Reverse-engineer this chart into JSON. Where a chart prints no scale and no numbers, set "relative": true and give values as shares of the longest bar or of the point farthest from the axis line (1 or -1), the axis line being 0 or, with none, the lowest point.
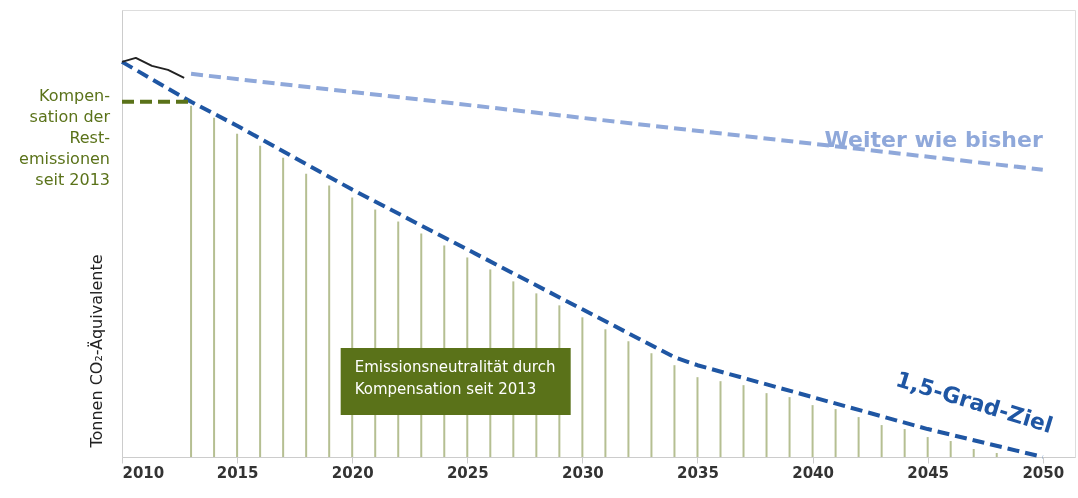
{
  "chart_data": {
    "type": "line",
    "relative": true,
    "ylabel": "Tonnen CO₂-Äquivalente",
    "xlim": [
      2010,
      2051.4
    ],
    "xticks": [
      2010,
      2015,
      2020,
      2025,
      2030,
      2035,
      2040,
      2045,
      2050
    ],
    "grid": false,
    "marker": "none",
    "series": [
      {
        "name": null,
        "type": "bar",
        "line_style": "dashed",
        "color": "#a8b47f",
        "x": [
          2013,
          2014,
          2015,
          2016,
          2017,
          2018,
          2019,
          2020,
          2021,
          2022,
          2023,
          2024,
          2025,
          2026,
          2027,
          2028,
          2029,
          2030,
          2031,
          2032,
          2033,
          2034,
          2035,
          2036,
          2037,
          2038,
          2039,
          2040,
          2041,
          2042,
          2043,
          2044,
          2045,
          2046,
          2047,
          2048
        ],
        "values": [
          0.88,
          0.85,
          0.81,
          0.78,
          0.75,
          0.71,
          0.68,
          0.65,
          0.62,
          0.59,
          0.56,
          0.53,
          0.5,
          0.47,
          0.44,
          0.41,
          0.38,
          0.35,
          0.32,
          0.29,
          0.26,
          0.23,
          0.2,
          0.19,
          0.18,
          0.16,
          0.15,
          0.13,
          0.12,
          0.1,
          0.08,
          0.07,
          0.05,
          0.04,
          0.02,
          0.01
        ]
      },
      {
        "name": "Weiter wie bisher",
        "color": "#8fa8da",
        "line_style": "dashed",
        "x": [
          2013,
          2050
        ],
        "values": [
          0.96,
          0.72
        ]
      },
      {
        "name": "1,5-Grad-Ziel",
        "color": "#1f56a3",
        "line_style": "dashed",
        "x": [
          2010,
          2013,
          2015,
          2020,
          2025,
          2030,
          2034,
          2035,
          2040,
          2045,
          2050
        ],
        "values": [
          0.99,
          0.89,
          0.83,
          0.67,
          0.52,
          0.37,
          0.25,
          0.23,
          0.15,
          0.07,
          0.0
        ]
      },
      {
        "name": null,
        "color": "#222222",
        "line_style": "solid",
        "x": [
          2010,
          2010.6,
          2011.3,
          2012,
          2012.7
        ],
        "values": [
          0.99,
          1.0,
          0.98,
          0.97,
          0.95
        ]
      },
      {
        "name": null,
        "color": "#5a7219",
        "line_style": "dashed",
        "x": [
          2010,
          2013
        ],
        "values": [
          0.89,
          0.89
        ]
      }
    ],
    "annotations": [
      "Kompen-\nsation der\nRest-\nemissionen\nseit 2013",
      "Emissionsneutralität durch\nKompensation seit 2013"
    ]
  }
}
